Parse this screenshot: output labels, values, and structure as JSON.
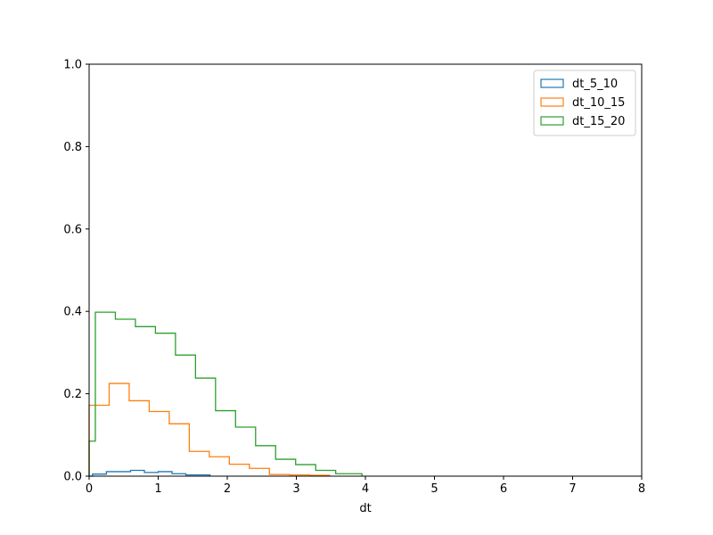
{
  "chart_data": {
    "type": "histogram-step",
    "title": "",
    "xlabel": "dt",
    "ylabel": "",
    "xlim": [
      0,
      8
    ],
    "ylim": [
      0,
      1.0
    ],
    "x_ticks": [
      "0",
      "1",
      "2",
      "3",
      "4",
      "5",
      "6",
      "7",
      "8"
    ],
    "y_ticks": [
      "0.0",
      "0.2",
      "0.4",
      "0.6",
      "0.8",
      "1.0"
    ],
    "grid": false,
    "legend_position": "top-right",
    "series": [
      {
        "name": "dt_5_10",
        "color": "#1f77b4",
        "bin_edges": [
          0,
          0.05,
          0.25,
          0.6,
          0.8,
          1.0,
          1.2,
          1.4,
          1.75
        ],
        "values": [
          0.0,
          0.005,
          0.011,
          0.014,
          0.009,
          0.011,
          0.006,
          0.003
        ]
      },
      {
        "name": "dt_10_15",
        "color": "#ff7f0e",
        "bin_edges": [
          0,
          0.29,
          0.58,
          0.87,
          1.16,
          1.45,
          1.74,
          2.03,
          2.32,
          2.61,
          2.9,
          3.19,
          3.48
        ],
        "values": [
          0.172,
          0.225,
          0.183,
          0.157,
          0.127,
          0.06,
          0.047,
          0.029,
          0.019,
          0.004,
          0.003,
          0.002
        ]
      },
      {
        "name": "dt_15_20",
        "color": "#2ca02c",
        "bin_edges": [
          0,
          0.09,
          0.38,
          0.67,
          0.96,
          1.25,
          1.54,
          1.83,
          2.12,
          2.41,
          2.7,
          2.99,
          3.28,
          3.57,
          3.95
        ],
        "values": [
          0.085,
          0.398,
          0.381,
          0.363,
          0.347,
          0.294,
          0.238,
          0.159,
          0.119,
          0.074,
          0.041,
          0.028,
          0.014,
          0.006
        ]
      }
    ]
  }
}
